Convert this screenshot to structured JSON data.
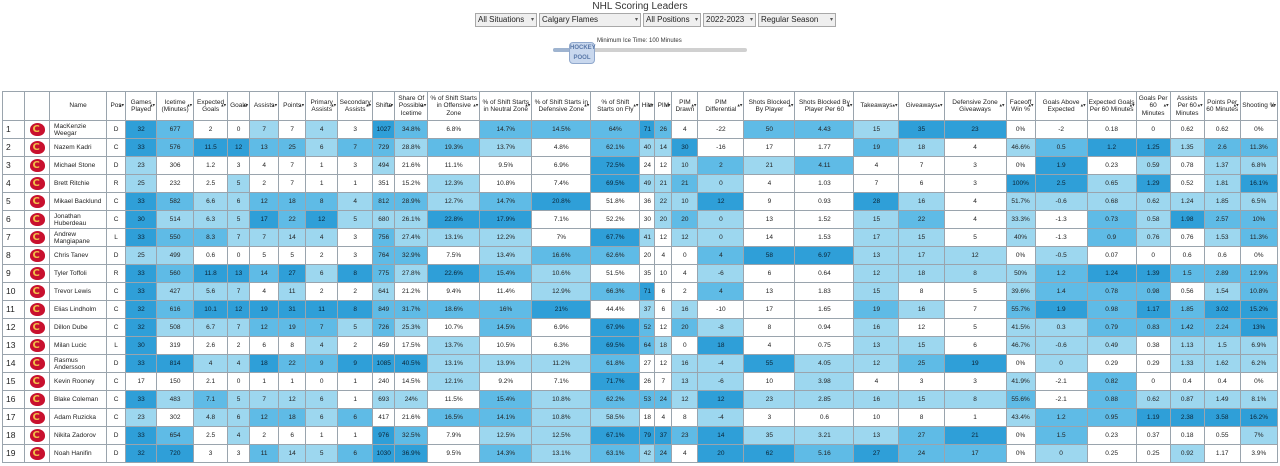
{
  "page": {
    "title": "NHL Scoring Leaders"
  },
  "filters": [
    {
      "value": "All Situations"
    },
    {
      "value": "Calgary Flames"
    },
    {
      "value": "All Positions"
    },
    {
      "value": "2022-2023"
    },
    {
      "value": "Regular Season"
    }
  ],
  "slider": {
    "label": "Minimum Ice Time: 100 Minutes",
    "handle_text": "HOCKEY POOL",
    "value_minutes": 100,
    "fill_fraction": 0.1
  },
  "columns": [
    "",
    "",
    "Name",
    "Pos",
    "Games Played",
    "Icetime (Minutes)",
    "Expected Goals",
    "Goals",
    "Assists",
    "Points",
    "Primary Assists",
    "Secondary Assists",
    "Shifts",
    "Share Of Possible Icetime",
    "% of Shift Starts in Offensive Zone",
    "% of Shift Starts in Neutral Zone",
    "% of Shift Starts in Defensive Zone",
    "% of Shift Starts on Fly",
    "Hits",
    "PIM",
    "PIM Drawn",
    "PIM Differential",
    "Shots Blocked By Player",
    "Shots Blocked By Player Per 60",
    "Takeaways",
    "Giveaways",
    "Defensive Zone Giveaways",
    "Faceoff Win %",
    "Goals Above Expected",
    "Expected Goals Per 60 Minutes",
    "Goals Per 60 Minutes",
    "Assists Per 60 Minutes",
    "Points Per 60 Minutes",
    "Shooting %"
  ],
  "rows": [
    [
      "1",
      "",
      "MacKenzie Weegar",
      "D",
      "32",
      "677",
      "2",
      "0",
      "7",
      "7",
      "4",
      "3",
      "1027",
      "34.8%",
      "6.8%",
      "14.7%",
      "14.5%",
      "64%",
      "71",
      "26",
      "4",
      "-22",
      "50",
      "4.43",
      "15",
      "35",
      "23",
      "0%",
      "-2",
      "0.18",
      "0",
      "0.62",
      "0.62",
      "0%"
    ],
    [
      "2",
      "",
      "Nazem Kadri",
      "C",
      "33",
      "576",
      "11.5",
      "12",
      "13",
      "25",
      "6",
      "7",
      "729",
      "28.8%",
      "19.3%",
      "13.7%",
      "4.8%",
      "62.1%",
      "40",
      "14",
      "30",
      "-16",
      "17",
      "1.77",
      "19",
      "18",
      "4",
      "46.6%",
      "0.5",
      "1.2",
      "1.25",
      "1.35",
      "2.6",
      "11.3%"
    ],
    [
      "3",
      "",
      "Michael Stone",
      "D",
      "23",
      "306",
      "1.2",
      "3",
      "4",
      "7",
      "1",
      "3",
      "494",
      "21.6%",
      "11.1%",
      "9.5%",
      "6.9%",
      "72.5%",
      "24",
      "12",
      "10",
      "2",
      "21",
      "4.11",
      "4",
      "7",
      "3",
      "0%",
      "1.9",
      "0.23",
      "0.59",
      "0.78",
      "1.37",
      "6.8%"
    ],
    [
      "4",
      "",
      "Brett Ritchie",
      "R",
      "25",
      "232",
      "2.5",
      "5",
      "2",
      "7",
      "1",
      "1",
      "351",
      "15.2%",
      "12.3%",
      "10.8%",
      "7.4%",
      "69.5%",
      "49",
      "21",
      "21",
      "0",
      "4",
      "1.03",
      "7",
      "6",
      "3",
      "100%",
      "2.5",
      "0.65",
      "1.29",
      "0.52",
      "1.81",
      "16.1%"
    ],
    [
      "5",
      "",
      "Mikael Backlund",
      "C",
      "33",
      "582",
      "6.6",
      "6",
      "12",
      "18",
      "8",
      "4",
      "812",
      "28.9%",
      "12.7%",
      "14.7%",
      "20.8%",
      "51.8%",
      "36",
      "22",
      "10",
      "12",
      "9",
      "0.93",
      "28",
      "16",
      "4",
      "51.7%",
      "-0.6",
      "0.68",
      "0.62",
      "1.24",
      "1.85",
      "6.5%"
    ],
    [
      "6",
      "",
      "Jonathan Huberdeau",
      "C",
      "30",
      "514",
      "6.3",
      "5",
      "17",
      "22",
      "12",
      "5",
      "680",
      "26.1%",
      "22.8%",
      "17.9%",
      "7.1%",
      "52.2%",
      "30",
      "20",
      "20",
      "0",
      "13",
      "1.52",
      "15",
      "22",
      "4",
      "33.3%",
      "-1.3",
      "0.73",
      "0.58",
      "1.98",
      "2.57",
      "10%"
    ],
    [
      "7",
      "",
      "Andrew Mangiapane",
      "L",
      "33",
      "550",
      "8.3",
      "7",
      "7",
      "14",
      "4",
      "3",
      "756",
      "27.4%",
      "13.1%",
      "12.2%",
      "7%",
      "67.7%",
      "41",
      "12",
      "12",
      "0",
      "14",
      "1.53",
      "17",
      "15",
      "5",
      "40%",
      "-1.3",
      "0.9",
      "0.76",
      "0.76",
      "1.53",
      "11.3%"
    ],
    [
      "8",
      "",
      "Chris Tanev",
      "D",
      "25",
      "499",
      "0.6",
      "0",
      "5",
      "5",
      "2",
      "3",
      "764",
      "32.9%",
      "7.5%",
      "13.4%",
      "16.6%",
      "62.6%",
      "20",
      "4",
      "0",
      "4",
      "58",
      "6.97",
      "13",
      "17",
      "12",
      "0%",
      "-0.5",
      "0.07",
      "0",
      "0.6",
      "0.6",
      "0%"
    ],
    [
      "9",
      "",
      "Tyler Toffoli",
      "R",
      "33",
      "560",
      "11.8",
      "13",
      "14",
      "27",
      "6",
      "8",
      "775",
      "27.8%",
      "22.6%",
      "15.4%",
      "10.6%",
      "51.5%",
      "35",
      "10",
      "4",
      "-6",
      "6",
      "0.64",
      "12",
      "18",
      "8",
      "50%",
      "1.2",
      "1.24",
      "1.39",
      "1.5",
      "2.89",
      "12.9%"
    ],
    [
      "10",
      "",
      "Trevor Lewis",
      "C",
      "33",
      "427",
      "5.6",
      "7",
      "4",
      "11",
      "2",
      "2",
      "641",
      "21.2%",
      "9.4%",
      "11.4%",
      "12.9%",
      "66.3%",
      "71",
      "6",
      "2",
      "4",
      "13",
      "1.83",
      "15",
      "8",
      "5",
      "39.6%",
      "1.4",
      "0.78",
      "0.98",
      "0.56",
      "1.54",
      "10.8%"
    ],
    [
      "11",
      "",
      "Elias Lindholm",
      "C",
      "32",
      "616",
      "10.1",
      "12",
      "19",
      "31",
      "11",
      "8",
      "849",
      "31.7%",
      "18.6%",
      "16%",
      "21%",
      "44.4%",
      "37",
      "6",
      "16",
      "-10",
      "17",
      "1.65",
      "19",
      "16",
      "7",
      "55.7%",
      "1.9",
      "0.98",
      "1.17",
      "1.85",
      "3.02",
      "15.2%"
    ],
    [
      "12",
      "",
      "Dillon Dube",
      "C",
      "32",
      "508",
      "6.7",
      "7",
      "12",
      "19",
      "7",
      "5",
      "726",
      "25.3%",
      "10.7%",
      "14.5%",
      "6.9%",
      "67.9%",
      "52",
      "12",
      "20",
      "-8",
      "8",
      "0.94",
      "16",
      "12",
      "5",
      "41.5%",
      "0.3",
      "0.79",
      "0.83",
      "1.42",
      "2.24",
      "13%"
    ],
    [
      "13",
      "",
      "Milan Lucic",
      "L",
      "30",
      "319",
      "2.6",
      "2",
      "6",
      "8",
      "4",
      "2",
      "459",
      "17.5%",
      "13.7%",
      "10.5%",
      "6.3%",
      "69.5%",
      "64",
      "18",
      "0",
      "18",
      "4",
      "0.75",
      "13",
      "15",
      "6",
      "46.7%",
      "-0.6",
      "0.49",
      "0.38",
      "1.13",
      "1.5",
      "6.9%"
    ],
    [
      "14",
      "",
      "Rasmus Andersson",
      "D",
      "33",
      "814",
      "4",
      "4",
      "18",
      "22",
      "9",
      "9",
      "1085",
      "40.5%",
      "13.1%",
      "13.9%",
      "11.2%",
      "61.8%",
      "27",
      "12",
      "16",
      "-4",
      "55",
      "4.05",
      "12",
      "25",
      "19",
      "0%",
      "0",
      "0.29",
      "0.29",
      "1.33",
      "1.62",
      "6.2%"
    ],
    [
      "15",
      "",
      "Kevin Rooney",
      "C",
      "17",
      "150",
      "2.1",
      "0",
      "1",
      "1",
      "0",
      "1",
      "240",
      "14.5%",
      "12.1%",
      "9.2%",
      "7.1%",
      "71.7%",
      "26",
      "7",
      "13",
      "-6",
      "10",
      "3.98",
      "4",
      "3",
      "3",
      "41.9%",
      "-2.1",
      "0.82",
      "0",
      "0.4",
      "0.4",
      "0%"
    ],
    [
      "16",
      "",
      "Blake Coleman",
      "C",
      "33",
      "483",
      "7.1",
      "5",
      "7",
      "12",
      "6",
      "1",
      "693",
      "24%",
      "11.5%",
      "15.4%",
      "10.8%",
      "62.2%",
      "53",
      "24",
      "12",
      "12",
      "23",
      "2.85",
      "16",
      "15",
      "8",
      "55.6%",
      "-2.1",
      "0.88",
      "0.62",
      "0.87",
      "1.49",
      "8.1%"
    ],
    [
      "17",
      "",
      "Adam Ruzicka",
      "C",
      "23",
      "302",
      "4.8",
      "6",
      "12",
      "18",
      "6",
      "6",
      "417",
      "21.6%",
      "16.5%",
      "14.1%",
      "10.8%",
      "58.5%",
      "18",
      "4",
      "8",
      "-4",
      "3",
      "0.6",
      "10",
      "8",
      "1",
      "43.4%",
      "1.2",
      "0.95",
      "1.19",
      "2.38",
      "3.58",
      "16.2%"
    ],
    [
      "18",
      "",
      "Nikita Zadorov",
      "D",
      "33",
      "654",
      "2.5",
      "4",
      "2",
      "6",
      "1",
      "1",
      "976",
      "32.5%",
      "7.9%",
      "12.5%",
      "12.5%",
      "67.1%",
      "79",
      "37",
      "23",
      "14",
      "35",
      "3.21",
      "13",
      "27",
      "21",
      "0%",
      "1.5",
      "0.23",
      "0.37",
      "0.18",
      "0.55",
      "7%"
    ],
    [
      "19",
      "",
      "Noah Hanifin",
      "D",
      "32",
      "720",
      "3",
      "3",
      "11",
      "14",
      "5",
      "6",
      "1030",
      "36.9%",
      "9.5%",
      "14.3%",
      "13.1%",
      "63.1%",
      "42",
      "24",
      "4",
      "20",
      "62",
      "5.16",
      "27",
      "24",
      "17",
      "0%",
      "0",
      "0.25",
      "0.25",
      "0.92",
      "1.17",
      "3.9%"
    ]
  ]
}
